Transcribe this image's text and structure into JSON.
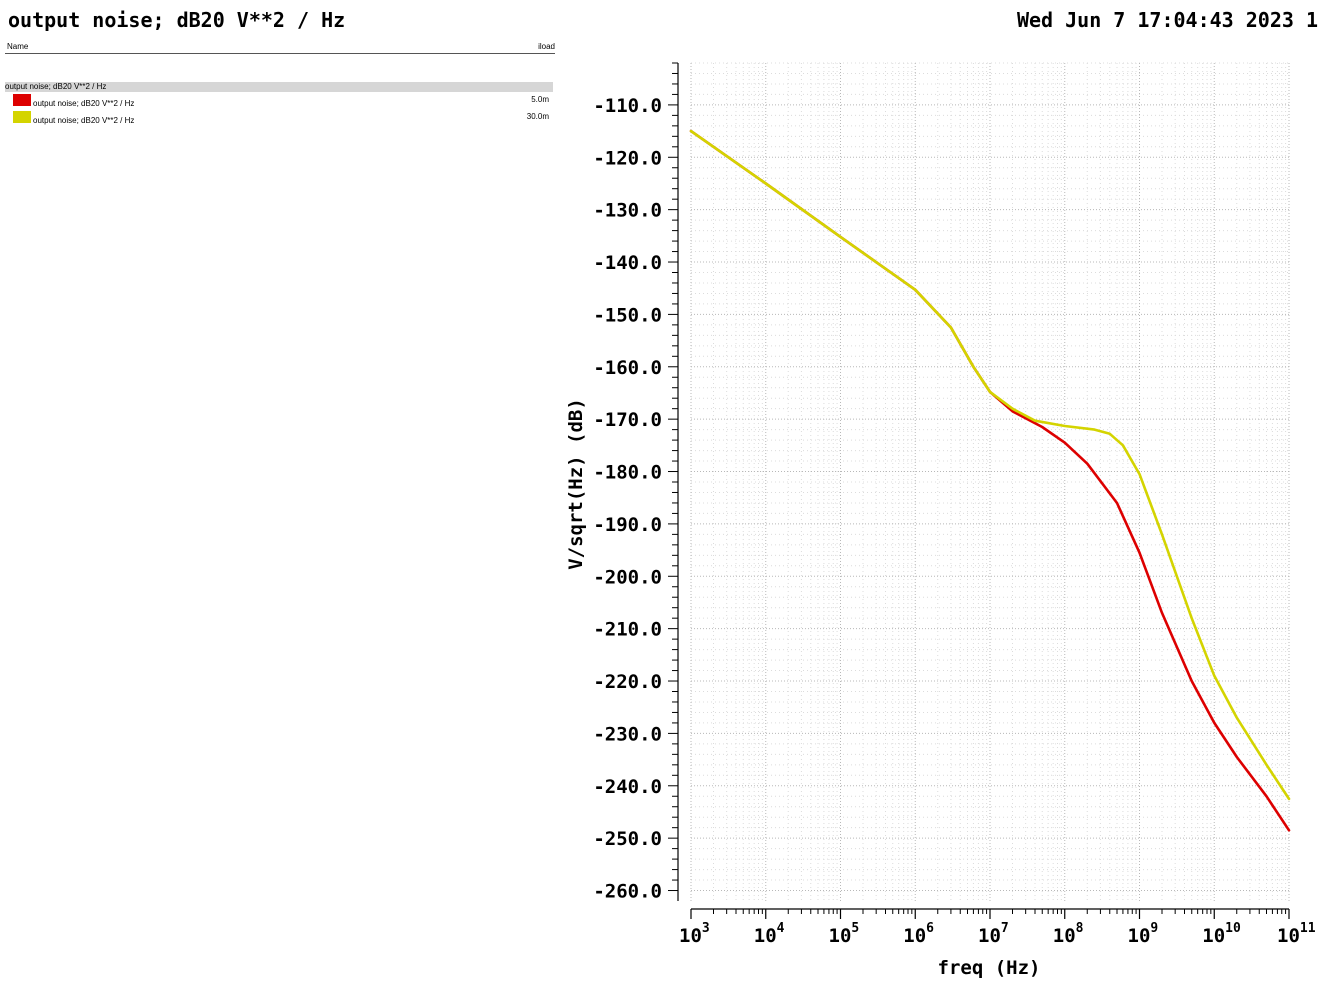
{
  "header": {
    "title": "output noise; dB20 V**2 / Hz",
    "timestamp": "Wed Jun 7 17:04:43 2023 1"
  },
  "legend": {
    "name_header": "Name",
    "param_header": "iload",
    "group_label": "output noise; dB20 V**2 / Hz",
    "entries": [
      {
        "label": "output noise; dB20 V**2 / Hz",
        "value": "5.0m",
        "color": "#dd0000"
      },
      {
        "label": "output noise; dB20 V**2 / Hz",
        "value": "30.0m",
        "color": "#d4d400"
      }
    ]
  },
  "chart_data": {
    "type": "line",
    "xlabel": "freq (Hz)",
    "ylabel": "V/sqrt(Hz) (dB)",
    "x_scale": "log",
    "xlim": [
      1000,
      100000000000
    ],
    "ylim": [
      -262,
      -102
    ],
    "grid": true,
    "y_ticks": [
      -110,
      -120,
      -130,
      -140,
      -150,
      -160,
      -170,
      -180,
      -190,
      -200,
      -210,
      -220,
      -230,
      -240,
      -250,
      -260
    ],
    "y_tick_labels": [
      "-110.0",
      "-120.0",
      "-130.0",
      "-140.0",
      "-150.0",
      "-160.0",
      "-170.0",
      "-180.0",
      "-190.0",
      "-200.0",
      "-210.0",
      "-220.0",
      "-230.0",
      "-240.0",
      "-250.0",
      "-260.0"
    ],
    "x_tick_labels": [
      {
        "base": "10",
        "exp": "3"
      },
      {
        "base": "10",
        "exp": "4"
      },
      {
        "base": "10",
        "exp": "5"
      },
      {
        "base": "10",
        "exp": "6"
      },
      {
        "base": "10",
        "exp": "7"
      },
      {
        "base": "10",
        "exp": "8"
      },
      {
        "base": "10",
        "exp": "9"
      },
      {
        "base": "10",
        "exp": "10"
      },
      {
        "base": "10",
        "exp": "11"
      }
    ],
    "series": [
      {
        "name": "5.0m",
        "color": "#dd0000",
        "points": [
          [
            1000,
            -115
          ],
          [
            10000,
            -125
          ],
          [
            100000,
            -135.2
          ],
          [
            1000000,
            -145.3
          ],
          [
            3000000,
            -152.5
          ],
          [
            6000000,
            -160
          ],
          [
            10000000,
            -164.8
          ],
          [
            20000000,
            -168.5
          ],
          [
            50000000,
            -171.5
          ],
          [
            100000000,
            -174.5
          ],
          [
            200000000,
            -178.5
          ],
          [
            500000000,
            -186
          ],
          [
            1000000000,
            -195.5
          ],
          [
            2000000000,
            -207
          ],
          [
            5000000000,
            -220
          ],
          [
            10000000000,
            -228
          ],
          [
            20000000000,
            -234.5
          ],
          [
            50000000000,
            -242
          ],
          [
            100000000000,
            -248.5
          ]
        ]
      },
      {
        "name": "30.0m",
        "color": "#d4d400",
        "points": [
          [
            1000,
            -115
          ],
          [
            10000,
            -125
          ],
          [
            100000,
            -135.2
          ],
          [
            1000000,
            -145.3
          ],
          [
            3000000,
            -152.5
          ],
          [
            6000000,
            -160
          ],
          [
            10000000,
            -164.8
          ],
          [
            20000000,
            -168
          ],
          [
            40000000,
            -170.3
          ],
          [
            100000000,
            -171.3
          ],
          [
            250000000,
            -172
          ],
          [
            400000000,
            -172.8
          ],
          [
            600000000,
            -175
          ],
          [
            1000000000,
            -180.5
          ],
          [
            2000000000,
            -192
          ],
          [
            5000000000,
            -208
          ],
          [
            10000000000,
            -219
          ],
          [
            20000000000,
            -227
          ],
          [
            50000000000,
            -236
          ],
          [
            100000000000,
            -242.5
          ]
        ]
      }
    ]
  }
}
